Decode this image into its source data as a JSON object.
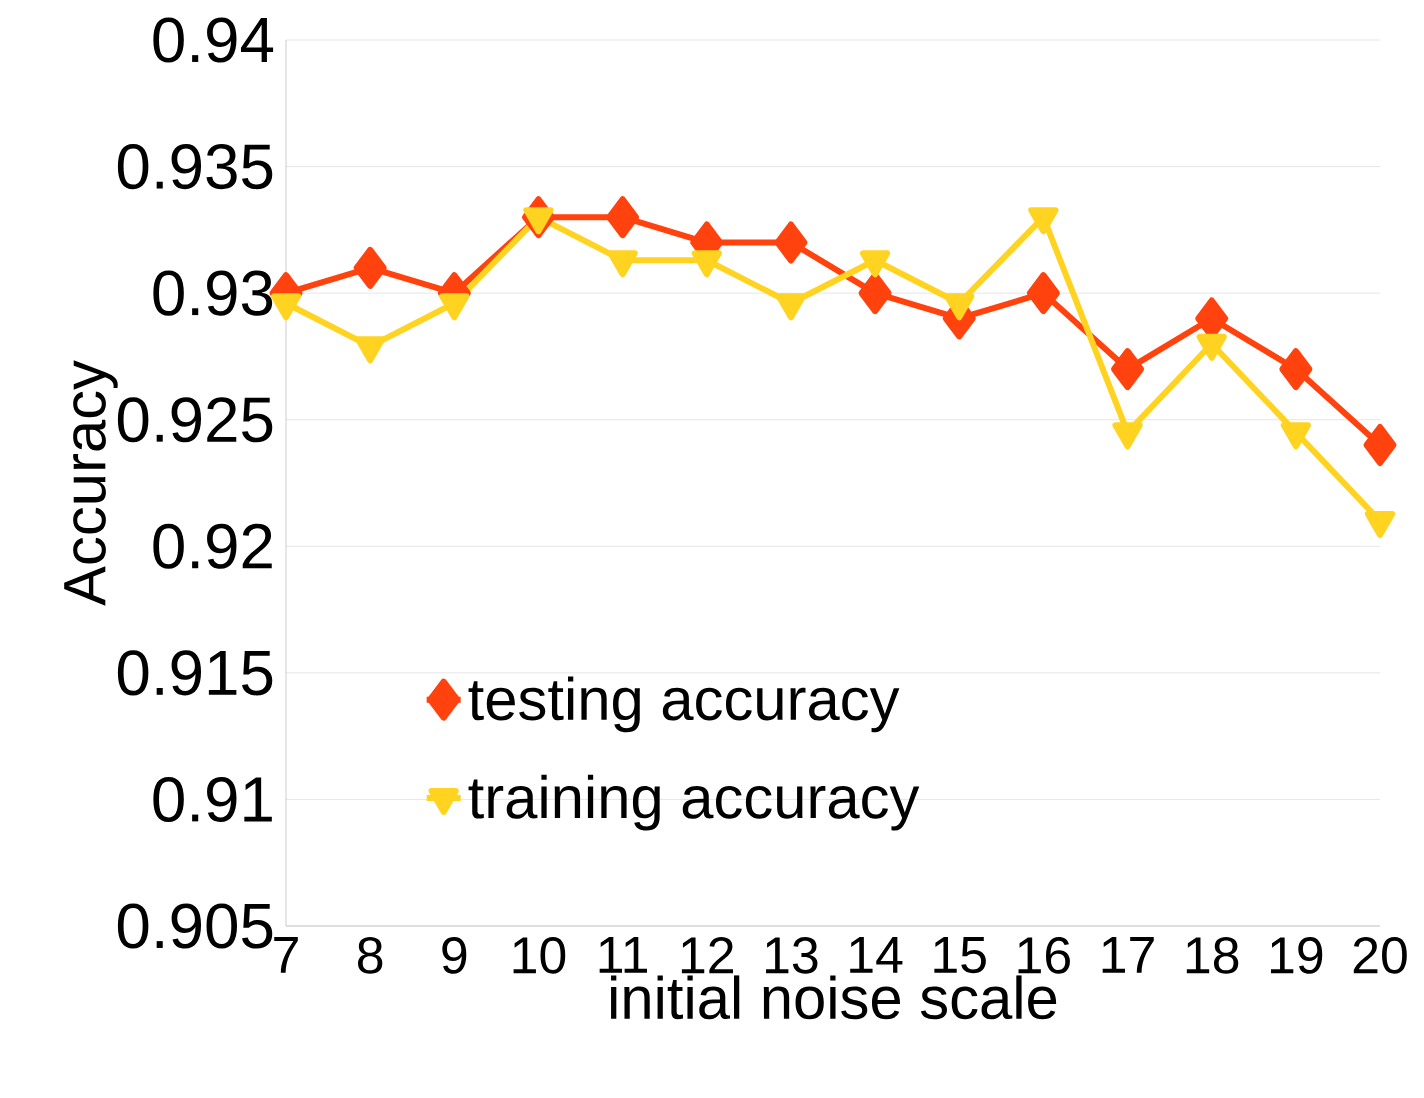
{
  "chart_data": {
    "type": "line",
    "xlabel": "initial noise scale",
    "ylabel": "Accuracy",
    "x": [
      7,
      8,
      9,
      10,
      11,
      12,
      13,
      14,
      15,
      16,
      17,
      18,
      19,
      20
    ],
    "xlim": [
      7,
      20
    ],
    "xticks": [
      7,
      8,
      9,
      10,
      11,
      12,
      13,
      14,
      15,
      16,
      17,
      18,
      19,
      20
    ],
    "ylim": [
      0.905,
      0.94
    ],
    "yticks": [
      0.905,
      0.91,
      0.915,
      0.92,
      0.925,
      0.93,
      0.935,
      0.94
    ],
    "grid": "y",
    "legend": "left",
    "line_style": "solid",
    "series": [
      {
        "name": "testing accuracy",
        "color": "#ff420e",
        "marker": "diamond",
        "values": [
          0.93,
          0.931,
          0.93,
          0.933,
          0.933,
          0.932,
          0.932,
          0.93,
          0.929,
          0.93,
          0.927,
          0.929,
          0.927,
          0.924
        ]
      },
      {
        "name": "training accuracy",
        "color": "#ffd320",
        "marker": "triangle",
        "values": [
          0.9296,
          0.9279,
          0.9296,
          0.933,
          0.9313,
          0.9313,
          0.9296,
          0.9313,
          0.9296,
          0.933,
          0.9245,
          0.928,
          0.9245,
          0.921
        ]
      }
    ]
  }
}
